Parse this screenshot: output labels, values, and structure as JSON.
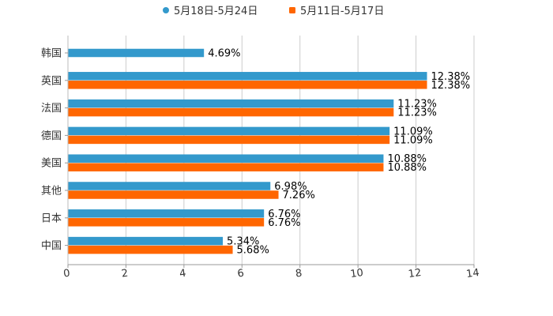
{
  "chart_data": {
    "type": "bar",
    "orientation": "horizontal",
    "categories": [
      "韩国",
      "英国",
      "法国",
      "德国",
      "美国",
      "其他",
      "日本",
      "中国"
    ],
    "series": [
      {
        "name": "5月18日-5月24日",
        "color": "#3399cc",
        "values": [
          4.69,
          12.38,
          11.23,
          11.09,
          10.88,
          6.98,
          6.76,
          5.34
        ],
        "labels": [
          "4.69%",
          "12.38%",
          "11.23%",
          "11.09%",
          "10.88%",
          "6.98%",
          "6.76%",
          "5.34%"
        ]
      },
      {
        "name": "5月11日-5月17日",
        "color": "#ff6600",
        "values": [
          null,
          12.38,
          11.23,
          11.09,
          10.88,
          7.26,
          6.76,
          5.68
        ],
        "labels": [
          null,
          "12.38%",
          "11.23%",
          "11.09%",
          "10.88%",
          "7.26%",
          "6.76%",
          "5.68%"
        ]
      }
    ],
    "xlim": [
      0,
      14
    ],
    "xticks": [
      "0",
      "2",
      "4",
      "6",
      "8",
      "10",
      "12",
      "14"
    ],
    "grid": true,
    "legend_position": "top-center",
    "title": "",
    "xlabel": "",
    "ylabel": ""
  }
}
